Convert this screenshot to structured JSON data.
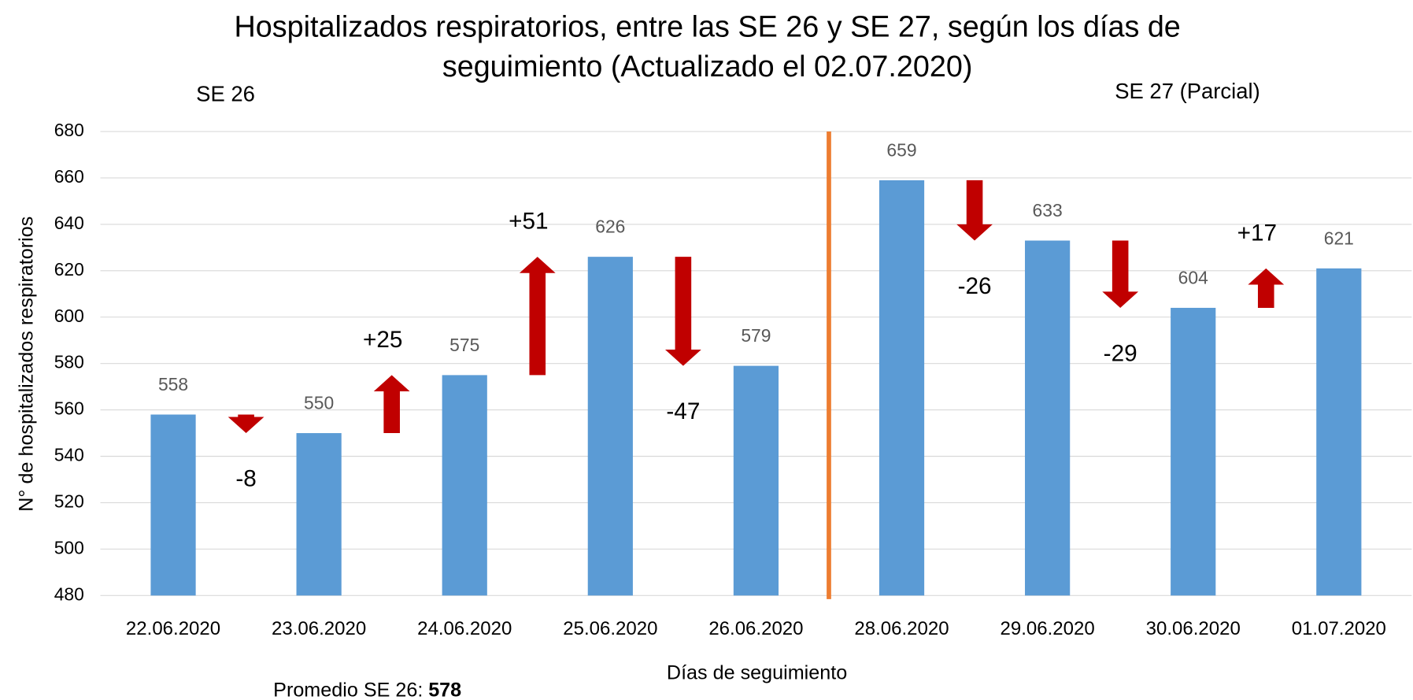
{
  "chart_data": {
    "type": "bar",
    "title": [
      "Hospitalizados respiratorios, entre las SE 26 y SE 27,  según los días de",
      "seguimiento (Actualizado el 02.07.2020)"
    ],
    "sections": [
      "SE 26",
      "SE 27 (Parcial)"
    ],
    "xlabel": "Días de seguimiento",
    "ylabel": "N° de hospitalizados respiratorios",
    "categories": [
      "22.06.2020",
      "23.06.2020",
      "24.06.2020",
      "25.06.2020",
      "26.06.2020",
      "28.06.2020",
      "29.06.2020",
      "30.06.2020",
      "01.07.2020"
    ],
    "values": [
      558,
      550,
      575,
      626,
      579,
      659,
      633,
      604,
      621
    ],
    "color": "#5b9bd5",
    "changes": {
      "values": [
        -8,
        25,
        51,
        -47,
        null,
        -26,
        -29,
        17
      ],
      "value_labels": [
        "-8",
        "+25",
        "+51",
        "-47",
        null,
        "-26",
        "-29",
        "+17"
      ],
      "color": "#c00000"
    },
    "divider_color": "#ed7d31",
    "ylim": [
      480,
      680
    ],
    "yticks": [
      480,
      500,
      520,
      540,
      560,
      580,
      600,
      620,
      640,
      660,
      680
    ],
    "grid": true,
    "note": {
      "label": "Promedio  SE 26:",
      "value": 578
    }
  }
}
